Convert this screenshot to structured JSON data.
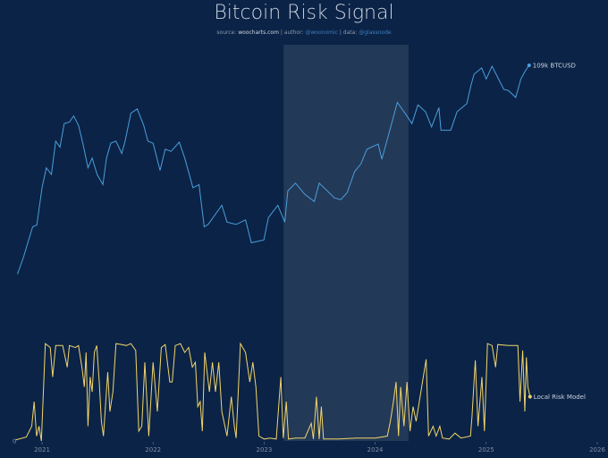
{
  "title": "Bitcoin Risk Signal",
  "subtitle": {
    "source_prefix": "source: ",
    "source": "woocharts.com",
    "author_prefix": " | author: ",
    "author": "@woonomic",
    "data_prefix": " | data: ",
    "data": "@glassnode"
  },
  "colors": {
    "background": "#0b2346",
    "price": "#4a9fdc",
    "risk": "#f2d56b",
    "shade": "#ffffff"
  },
  "chart_data": [
    {
      "type": "line",
      "name": "BTCUSD",
      "end_label": "109k BTCUSD",
      "yscale": "log",
      "ylim": [
        10000,
        150000
      ],
      "xlim": [
        "2020-09-01",
        "2026-01-01"
      ],
      "x_ticks": [
        "2021",
        "2022",
        "2023",
        "2024",
        "2025",
        "2026"
      ],
      "highlight_range": [
        "2023-03-06",
        "2024-04-20"
      ],
      "points": [
        [
          "2020-10-12",
          11400
        ],
        [
          "2020-11-01",
          13700
        ],
        [
          "2020-11-15",
          16000
        ],
        [
          "2020-12-01",
          19000
        ],
        [
          "2020-12-15",
          19400
        ],
        [
          "2021-01-01",
          29000
        ],
        [
          "2021-01-15",
          36000
        ],
        [
          "2021-02-01",
          33500
        ],
        [
          "2021-02-15",
          48000
        ],
        [
          "2021-03-01",
          45000
        ],
        [
          "2021-03-15",
          58000
        ],
        [
          "2021-04-01",
          59000
        ],
        [
          "2021-04-15",
          63000
        ],
        [
          "2021-05-01",
          57000
        ],
        [
          "2021-05-15",
          47000
        ],
        [
          "2021-06-01",
          36000
        ],
        [
          "2021-06-15",
          40000
        ],
        [
          "2021-07-01",
          33500
        ],
        [
          "2021-07-20",
          30000
        ],
        [
          "2021-08-01",
          40000
        ],
        [
          "2021-08-15",
          47000
        ],
        [
          "2021-09-01",
          48000
        ],
        [
          "2021-09-20",
          42000
        ],
        [
          "2021-10-01",
          48000
        ],
        [
          "2021-10-20",
          65000
        ],
        [
          "2021-11-10",
          68000
        ],
        [
          "2021-12-01",
          57000
        ],
        [
          "2021-12-15",
          48000
        ],
        [
          "2022-01-01",
          47000
        ],
        [
          "2022-01-24",
          35000
        ],
        [
          "2022-02-10",
          44000
        ],
        [
          "2022-03-01",
          43000
        ],
        [
          "2022-03-28",
          47500
        ],
        [
          "2022-04-15",
          40000
        ],
        [
          "2022-05-12",
          29000
        ],
        [
          "2022-06-01",
          30000
        ],
        [
          "2022-06-18",
          19000
        ],
        [
          "2022-07-01",
          19500
        ],
        [
          "2022-08-15",
          24000
        ],
        [
          "2022-09-01",
          20000
        ],
        [
          "2022-10-01",
          19500
        ],
        [
          "2022-11-01",
          20500
        ],
        [
          "2022-11-20",
          16000
        ],
        [
          "2022-12-31",
          16500
        ],
        [
          "2023-01-15",
          21000
        ],
        [
          "2023-02-15",
          24000
        ],
        [
          "2023-03-10",
          20000
        ],
        [
          "2023-03-20",
          28000
        ],
        [
          "2023-04-14",
          30500
        ],
        [
          "2023-05-15",
          27000
        ],
        [
          "2023-06-15",
          25000
        ],
        [
          "2023-07-01",
          30500
        ],
        [
          "2023-08-20",
          26000
        ],
        [
          "2023-09-10",
          25500
        ],
        [
          "2023-10-01",
          27500
        ],
        [
          "2023-10-25",
          34500
        ],
        [
          "2023-11-15",
          37500
        ],
        [
          "2023-12-05",
          44000
        ],
        [
          "2024-01-11",
          46500
        ],
        [
          "2024-01-23",
          39500
        ],
        [
          "2024-02-15",
          52000
        ],
        [
          "2024-03-14",
          73000
        ],
        [
          "2024-04-15",
          63000
        ],
        [
          "2024-05-01",
          58000
        ],
        [
          "2024-05-21",
          71000
        ],
        [
          "2024-06-15",
          66000
        ],
        [
          "2024-07-05",
          56000
        ],
        [
          "2024-07-29",
          69000
        ],
        [
          "2024-08-05",
          54000
        ],
        [
          "2024-09-06",
          54000
        ],
        [
          "2024-09-27",
          66000
        ],
        [
          "2024-10-29",
          72000
        ],
        [
          "2024-11-12",
          88000
        ],
        [
          "2024-11-22",
          99000
        ],
        [
          "2024-12-17",
          106000
        ],
        [
          "2025-01-01",
          94000
        ],
        [
          "2025-01-20",
          108000
        ],
        [
          "2025-02-01",
          100000
        ],
        [
          "2025-02-28",
          84000
        ],
        [
          "2025-03-15",
          83000
        ],
        [
          "2025-04-08",
          77000
        ],
        [
          "2025-04-25",
          94000
        ],
        [
          "2025-05-10",
          103000
        ],
        [
          "2025-05-22",
          109000
        ]
      ]
    },
    {
      "type": "line",
      "name": "Local Risk Model",
      "end_label": "Local Risk Model",
      "ylim": [
        0,
        1
      ],
      "y_ticks": [
        "0"
      ],
      "points": [
        [
          "2020-10-05",
          0.01
        ],
        [
          "2020-11-10",
          0.04
        ],
        [
          "2020-11-28",
          0.15
        ],
        [
          "2020-12-06",
          0.4
        ],
        [
          "2020-12-14",
          0.05
        ],
        [
          "2020-12-22",
          0.15
        ],
        [
          "2020-12-30",
          0.0
        ],
        [
          "2021-01-12",
          0.99
        ],
        [
          "2021-01-28",
          0.95
        ],
        [
          "2021-02-05",
          0.65
        ],
        [
          "2021-02-15",
          0.97
        ],
        [
          "2021-03-10",
          0.97
        ],
        [
          "2021-03-25",
          0.75
        ],
        [
          "2021-04-01",
          0.97
        ],
        [
          "2021-04-20",
          0.95
        ],
        [
          "2021-05-01",
          0.97
        ],
        [
          "2021-05-12",
          0.75
        ],
        [
          "2021-05-20",
          0.55
        ],
        [
          "2021-05-26",
          0.9
        ],
        [
          "2021-06-01",
          0.15
        ],
        [
          "2021-06-08",
          0.65
        ],
        [
          "2021-06-15",
          0.5
        ],
        [
          "2021-06-22",
          0.9
        ],
        [
          "2021-06-30",
          0.97
        ],
        [
          "2021-07-08",
          0.6
        ],
        [
          "2021-07-15",
          0.2
        ],
        [
          "2021-07-22",
          0.05
        ],
        [
          "2021-08-05",
          0.7
        ],
        [
          "2021-08-12",
          0.3
        ],
        [
          "2021-08-22",
          0.5
        ],
        [
          "2021-09-01",
          0.99
        ],
        [
          "2021-09-20",
          0.98
        ],
        [
          "2021-10-05",
          0.97
        ],
        [
          "2021-10-20",
          0.99
        ],
        [
          "2021-11-05",
          0.92
        ],
        [
          "2021-11-15",
          0.1
        ],
        [
          "2021-11-25",
          0.15
        ],
        [
          "2021-12-05",
          0.8
        ],
        [
          "2021-12-18",
          0.05
        ],
        [
          "2022-01-01",
          0.8
        ],
        [
          "2022-01-15",
          0.3
        ],
        [
          "2022-01-28",
          0.95
        ],
        [
          "2022-02-10",
          0.98
        ],
        [
          "2022-02-25",
          0.6
        ],
        [
          "2022-03-05",
          0.6
        ],
        [
          "2022-03-15",
          0.97
        ],
        [
          "2022-04-01",
          0.99
        ],
        [
          "2022-04-15",
          0.9
        ],
        [
          "2022-04-28",
          0.95
        ],
        [
          "2022-05-10",
          0.75
        ],
        [
          "2022-05-20",
          0.8
        ],
        [
          "2022-05-28",
          0.35
        ],
        [
          "2022-06-05",
          0.4
        ],
        [
          "2022-06-12",
          0.1
        ],
        [
          "2022-06-20",
          0.9
        ],
        [
          "2022-07-05",
          0.5
        ],
        [
          "2022-07-15",
          0.8
        ],
        [
          "2022-07-25",
          0.5
        ],
        [
          "2022-08-05",
          0.8
        ],
        [
          "2022-08-15",
          0.3
        ],
        [
          "2022-09-01",
          0.05
        ],
        [
          "2022-09-15",
          0.45
        ],
        [
          "2022-09-25",
          0.15
        ],
        [
          "2022-10-01",
          0.03
        ],
        [
          "2022-10-15",
          0.99
        ],
        [
          "2022-11-01",
          0.9
        ],
        [
          "2022-11-15",
          0.6
        ],
        [
          "2022-11-25",
          0.8
        ],
        [
          "2022-12-05",
          0.55
        ],
        [
          "2022-12-15",
          0.05
        ],
        [
          "2023-01-01",
          0.02
        ],
        [
          "2023-01-20",
          0.03
        ],
        [
          "2023-02-10",
          0.02
        ],
        [
          "2023-02-25",
          0.65
        ],
        [
          "2023-03-05",
          0.03
        ],
        [
          "2023-03-15",
          0.4
        ],
        [
          "2023-03-22",
          0.02
        ],
        [
          "2023-04-15",
          0.03
        ],
        [
          "2023-05-15",
          0.03
        ],
        [
          "2023-06-05",
          0.18
        ],
        [
          "2023-06-12",
          0.02
        ],
        [
          "2023-06-22",
          0.45
        ],
        [
          "2023-07-01",
          0.02
        ],
        [
          "2023-07-08",
          0.35
        ],
        [
          "2023-07-15",
          0.02
        ],
        [
          "2023-09-01",
          0.02
        ],
        [
          "2023-11-01",
          0.03
        ],
        [
          "2024-01-01",
          0.03
        ],
        [
          "2024-02-10",
          0.05
        ],
        [
          "2024-02-20",
          0.2
        ],
        [
          "2024-03-01",
          0.4
        ],
        [
          "2024-03-10",
          0.6
        ],
        [
          "2024-03-18",
          0.05
        ],
        [
          "2024-03-25",
          0.55
        ],
        [
          "2024-04-05",
          0.15
        ],
        [
          "2024-04-15",
          0.6
        ],
        [
          "2024-04-25",
          0.1
        ],
        [
          "2024-05-05",
          0.35
        ],
        [
          "2024-05-15",
          0.2
        ],
        [
          "2024-06-17",
          0.83
        ],
        [
          "2024-06-25",
          0.05
        ],
        [
          "2024-07-10",
          0.15
        ],
        [
          "2024-07-20",
          0.05
        ],
        [
          "2024-08-01",
          0.15
        ],
        [
          "2024-08-10",
          0.03
        ],
        [
          "2024-09-01",
          0.02
        ],
        [
          "2024-09-20",
          0.08
        ],
        [
          "2024-10-10",
          0.03
        ],
        [
          "2024-11-10",
          0.05
        ],
        [
          "2024-11-15",
          0.25
        ],
        [
          "2024-11-26",
          0.82
        ],
        [
          "2024-12-05",
          0.15
        ],
        [
          "2024-12-18",
          0.65
        ],
        [
          "2024-12-26",
          0.1
        ],
        [
          "2025-01-05",
          0.99
        ],
        [
          "2025-01-20",
          0.97
        ],
        [
          "2025-02-01",
          0.75
        ],
        [
          "2025-02-08",
          0.98
        ],
        [
          "2025-03-15",
          0.97
        ],
        [
          "2025-04-15",
          0.97
        ],
        [
          "2025-04-22",
          0.4
        ],
        [
          "2025-05-01",
          0.92
        ],
        [
          "2025-05-08",
          0.3
        ],
        [
          "2025-05-13",
          0.85
        ],
        [
          "2025-05-18",
          0.55
        ],
        [
          "2025-05-25",
          0.45
        ]
      ]
    }
  ]
}
